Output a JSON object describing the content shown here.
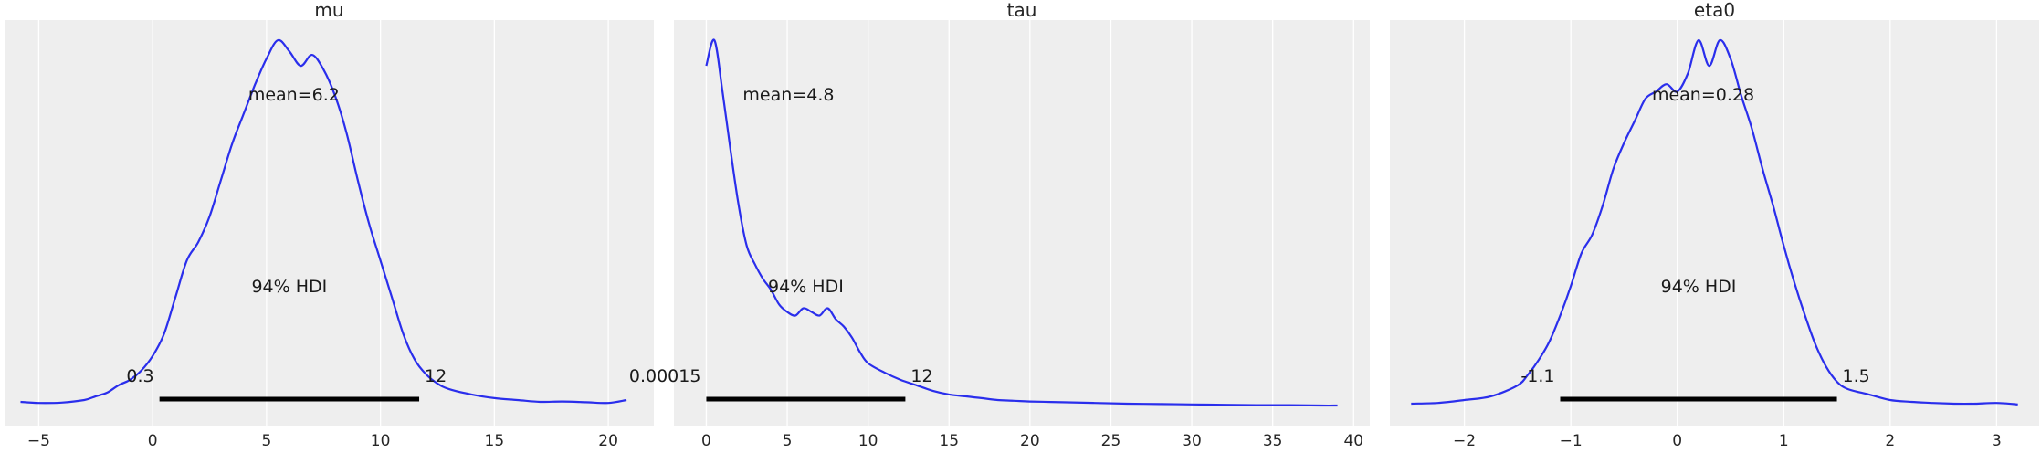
{
  "figure": {
    "background": "#ffffff",
    "panel_background": "#eeeeee",
    "grid_color": "#ffffff",
    "kde_color": "#2a2eec",
    "hdi_color": "#000000"
  },
  "chart_data": [
    {
      "type": "line",
      "title": "mu",
      "xlim": [
        -6.5,
        22.0
      ],
      "ylim": [
        0,
        1
      ],
      "xticks": [
        -5,
        0,
        5,
        10,
        15,
        20
      ],
      "xtick_labels": [
        "−5",
        "0",
        "5",
        "10",
        "15",
        "20"
      ],
      "grid": true,
      "x": [
        -5.8,
        -5.0,
        -4.0,
        -3.0,
        -2.5,
        -2.0,
        -1.5,
        -1.0,
        -0.5,
        0.0,
        0.5,
        1.0,
        1.5,
        2.0,
        2.5,
        3.0,
        3.5,
        4.0,
        4.5,
        5.0,
        5.5,
        6.0,
        6.5,
        7.0,
        7.5,
        8.0,
        8.5,
        9.0,
        9.5,
        10.0,
        10.5,
        11.0,
        11.5,
        12.0,
        12.5,
        13.0,
        14.0,
        15.0,
        16.0,
        17.0,
        18.0,
        19.0,
        20.0,
        20.8
      ],
      "y": [
        0.015,
        0.012,
        0.013,
        0.02,
        0.03,
        0.04,
        0.06,
        0.075,
        0.1,
        0.14,
        0.2,
        0.3,
        0.4,
        0.45,
        0.52,
        0.62,
        0.72,
        0.8,
        0.88,
        0.95,
        1.0,
        0.97,
        0.93,
        0.96,
        0.92,
        0.85,
        0.75,
        0.62,
        0.5,
        0.4,
        0.3,
        0.2,
        0.13,
        0.09,
        0.065,
        0.05,
        0.035,
        0.025,
        0.02,
        0.015,
        0.016,
        0.014,
        0.012,
        0.02
      ],
      "mean_label": "mean=6.2",
      "hdi_label": "94% HDI",
      "hdi": [
        0.3,
        11.7
      ],
      "hdi_low_label": "0.3",
      "hdi_high_label": "12"
    },
    {
      "type": "line",
      "title": "tau",
      "xlim": [
        -2.0,
        41.0
      ],
      "ylim": [
        0,
        1
      ],
      "xticks": [
        0,
        5,
        10,
        15,
        20,
        25,
        30,
        35,
        40
      ],
      "xtick_labels": [
        "0",
        "5",
        "10",
        "15",
        "20",
        "25",
        "30",
        "35",
        "40"
      ],
      "grid": true,
      "x": [
        0.0,
        0.5,
        1.0,
        1.5,
        2.0,
        2.5,
        3.0,
        3.5,
        4.0,
        4.5,
        5.0,
        5.5,
        6.0,
        6.5,
        7.0,
        7.5,
        8.0,
        8.5,
        9.0,
        9.5,
        10.0,
        11.0,
        12.0,
        13.0,
        14.0,
        15.0,
        16.0,
        17.0,
        18.0,
        19.0,
        20.0,
        22.0,
        24.0,
        26.0,
        28.0,
        30.0,
        32.0,
        34.0,
        36.0,
        38.0,
        39.0
      ],
      "y": [
        0.93,
        1.0,
        0.86,
        0.7,
        0.55,
        0.44,
        0.39,
        0.35,
        0.32,
        0.28,
        0.26,
        0.25,
        0.27,
        0.26,
        0.25,
        0.27,
        0.24,
        0.22,
        0.19,
        0.15,
        0.12,
        0.095,
        0.075,
        0.06,
        0.045,
        0.035,
        0.03,
        0.025,
        0.02,
        0.018,
        0.016,
        0.014,
        0.012,
        0.01,
        0.009,
        0.008,
        0.007,
        0.006,
        0.006,
        0.005,
        0.005
      ],
      "mean_label": "mean=4.8",
      "hdi_label": "94% HDI",
      "hdi": [
        0.00015,
        12.3
      ],
      "hdi_low_label": "0.00015",
      "hdi_high_label": "12"
    },
    {
      "type": "line",
      "title": "eta0",
      "xlim": [
        -2.7,
        3.4
      ],
      "ylim": [
        0,
        1
      ],
      "xticks": [
        -2,
        -1,
        0,
        1,
        2,
        3
      ],
      "xtick_labels": [
        "−2",
        "−1",
        "0",
        "1",
        "2",
        "3"
      ],
      "grid": true,
      "x": [
        -2.5,
        -2.25,
        -2.0,
        -1.75,
        -1.5,
        -1.4,
        -1.3,
        -1.2,
        -1.1,
        -1.0,
        -0.9,
        -0.8,
        -0.7,
        -0.6,
        -0.5,
        -0.4,
        -0.3,
        -0.2,
        -0.1,
        0.0,
        0.1,
        0.2,
        0.3,
        0.4,
        0.5,
        0.6,
        0.7,
        0.8,
        0.9,
        1.0,
        1.1,
        1.2,
        1.3,
        1.4,
        1.5,
        1.6,
        1.8,
        2.0,
        2.2,
        2.4,
        2.6,
        2.8,
        3.0,
        3.2
      ],
      "y": [
        0.01,
        0.012,
        0.02,
        0.03,
        0.06,
        0.09,
        0.13,
        0.18,
        0.25,
        0.33,
        0.42,
        0.47,
        0.55,
        0.65,
        0.72,
        0.78,
        0.84,
        0.86,
        0.88,
        0.86,
        0.91,
        1.0,
        0.93,
        1.0,
        0.95,
        0.85,
        0.76,
        0.65,
        0.55,
        0.44,
        0.34,
        0.25,
        0.17,
        0.11,
        0.07,
        0.05,
        0.035,
        0.02,
        0.015,
        0.012,
        0.01,
        0.01,
        0.012,
        0.008
      ],
      "mean_label": "mean=0.28",
      "hdi_label": "94% HDI",
      "hdi": [
        -1.1,
        1.5
      ],
      "hdi_low_label": "-1.1",
      "hdi_high_label": "1.5"
    }
  ]
}
